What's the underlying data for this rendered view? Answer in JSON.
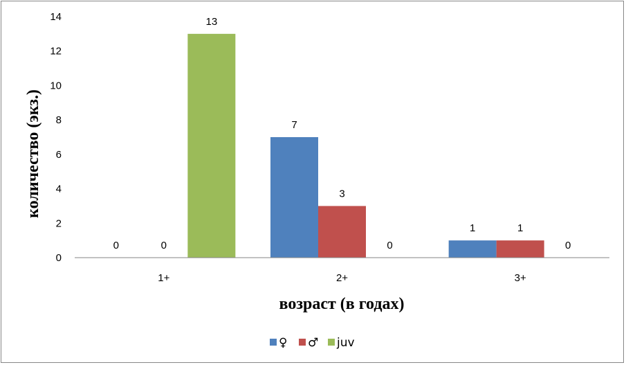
{
  "chart_data": {
    "type": "bar",
    "categories": [
      "1+",
      "2+",
      "3+"
    ],
    "series": [
      {
        "name": "♀",
        "values": [
          0,
          7,
          1
        ],
        "color": "#4F81BD"
      },
      {
        "name": "♂",
        "values": [
          0,
          3,
          1
        ],
        "color": "#C0504D"
      },
      {
        "name": "juv",
        "values": [
          13,
          0,
          0
        ],
        "color": "#9BBB59"
      }
    ],
    "xlabel": "возраст (в годах)",
    "ylabel": "количество (экз.)",
    "ylim": [
      0,
      14
    ],
    "yticks": [
      0,
      2,
      4,
      6,
      8,
      10,
      12,
      14
    ],
    "grid": false,
    "data_labels": true,
    "legend_position": "bottom",
    "axis_color": "#868686",
    "border_color": "#868686"
  }
}
